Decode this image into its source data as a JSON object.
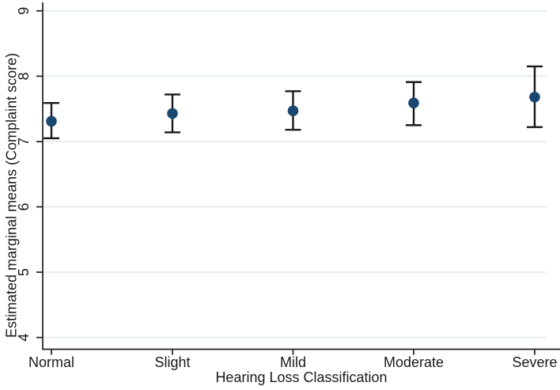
{
  "figure": {
    "background": "#ffffff"
  },
  "chart_data": {
    "type": "scatter",
    "variant": "point-estimates-with-ci-error-bars",
    "title": "",
    "xlabel": "Hearing Loss Classification",
    "ylabel": "Estimated marginal means (Complaint score)",
    "categories": [
      "Normal",
      "Slight",
      "Mild",
      "Moderate",
      "Severe"
    ],
    "series": [
      {
        "name": "Estimated marginal mean",
        "means": [
          7.31,
          7.43,
          7.47,
          7.59,
          7.68
        ],
        "ci_low": [
          7.05,
          7.14,
          7.18,
          7.25,
          7.22
        ],
        "ci_high": [
          7.59,
          7.72,
          7.77,
          7.91,
          8.15
        ]
      }
    ],
    "yticks": [
      4,
      5,
      6,
      7,
      8,
      9
    ],
    "ylim": [
      3.82,
      9.13
    ],
    "grid": true,
    "legend_position": "none",
    "colors": {
      "marker": "#1a476f",
      "error_bar": "#1a1a1a",
      "grid_line": "#e4edee",
      "axis_line": "#1f1f1f",
      "text": "#1a1a1a"
    }
  }
}
